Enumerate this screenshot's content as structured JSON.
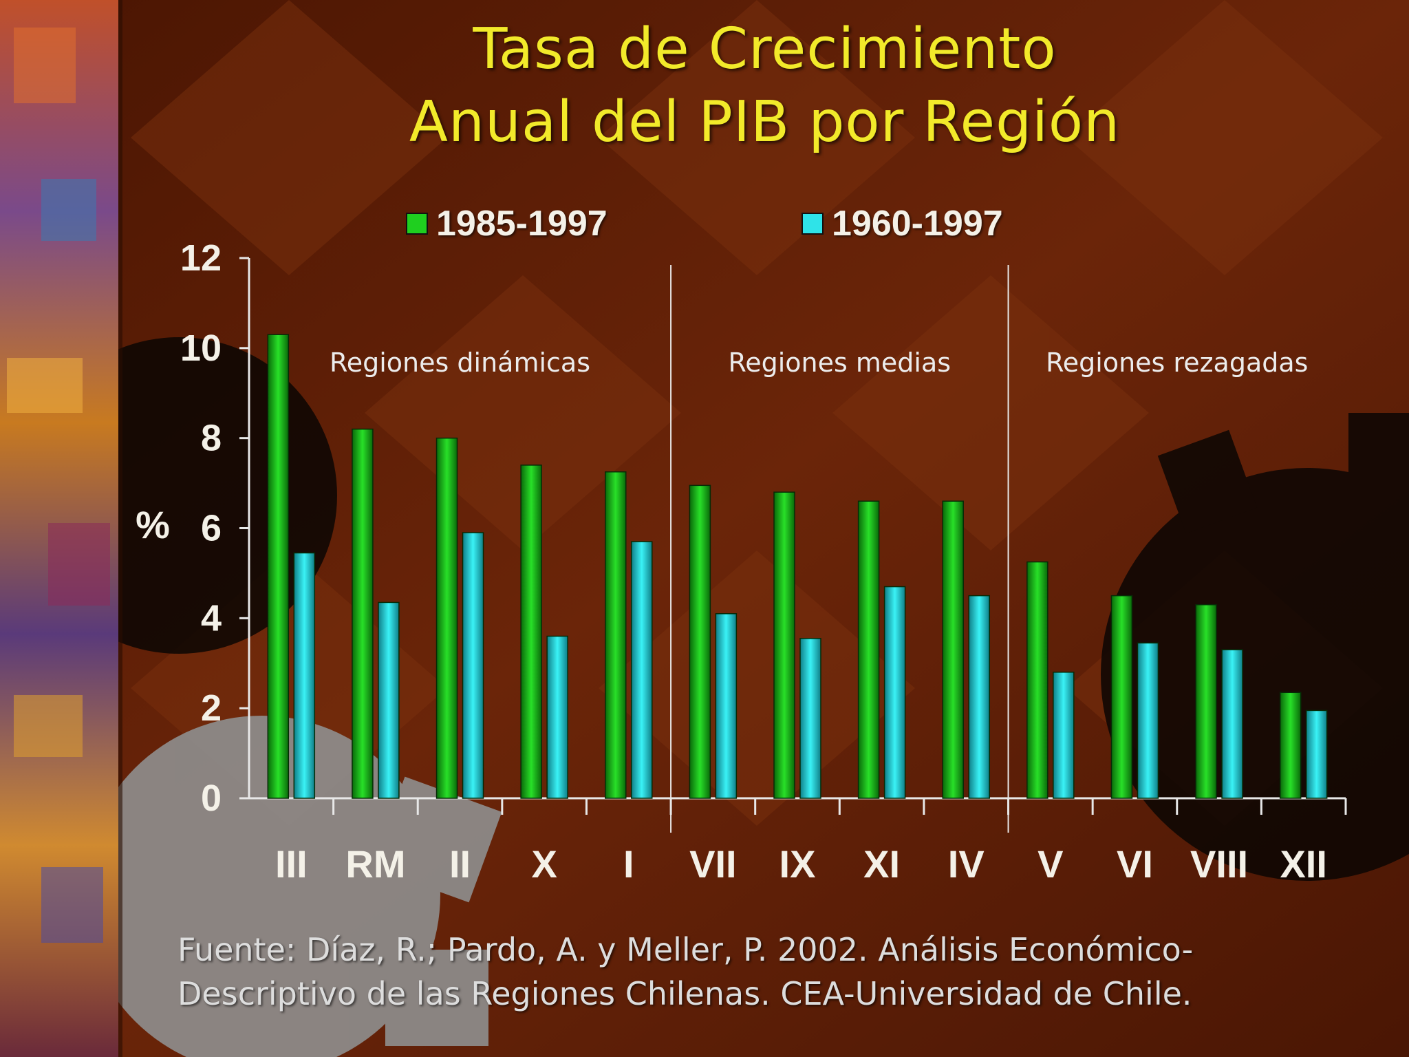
{
  "title": [
    "Tasa de Crecimiento",
    "Anual del PIB por Región"
  ],
  "colors": {
    "title": "#f2ea2a",
    "series1": "#1fcf1f",
    "series2": "#2fe3e8",
    "background": "#5a1d06"
  },
  "chart_data": {
    "type": "bar",
    "ylabel": "%",
    "ylim": [
      0,
      12
    ],
    "yticks": [
      0,
      2,
      4,
      6,
      8,
      10,
      12
    ],
    "categories": [
      "III",
      "RM",
      "II",
      "X",
      "I",
      "VII",
      "IX",
      "XI",
      "IV",
      "V",
      "VI",
      "VIII",
      "XII"
    ],
    "series": [
      {
        "name": "1985-1997",
        "color": "#1fcf1f",
        "values": [
          10.3,
          8.2,
          8.0,
          7.4,
          7.25,
          6.95,
          6.8,
          6.6,
          6.6,
          5.25,
          4.5,
          4.3,
          2.35
        ]
      },
      {
        "name": "1960-1997",
        "color": "#2fe3e8",
        "values": [
          5.45,
          4.35,
          5.9,
          3.6,
          5.7,
          4.1,
          3.55,
          4.7,
          4.5,
          2.8,
          3.45,
          3.3,
          1.95
        ]
      }
    ],
    "groups": [
      {
        "label": "Regiones dinámicas",
        "count": 5
      },
      {
        "label": "Regiones medias",
        "count": 4
      },
      {
        "label": "Regiones rezagadas",
        "count": 4
      }
    ],
    "legend_position": "top-center",
    "grid": false
  },
  "source": [
    "Fuente: Díaz, R.; Pardo, A. y Meller, P. 2002. Análisis Económico-",
    "Descriptivo de las Regiones Chilenas. CEA-Universidad de Chile."
  ]
}
